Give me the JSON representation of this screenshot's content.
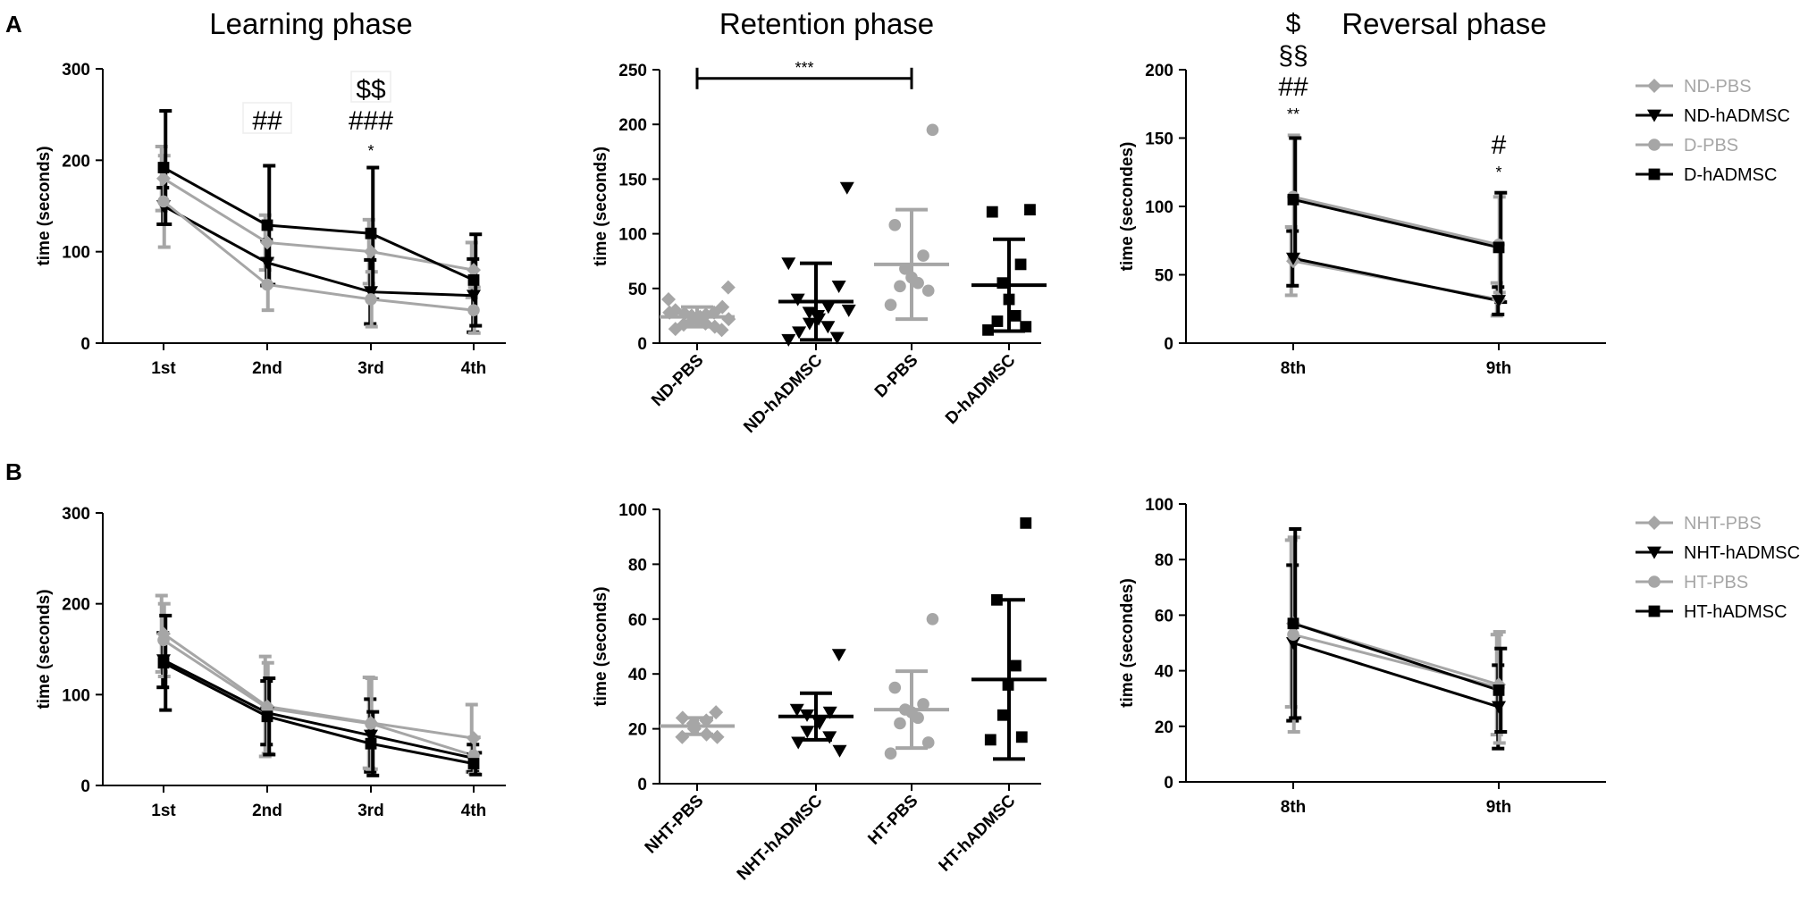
{
  "panel_labels": [
    "A",
    "B"
  ],
  "chart_data": [
    {
      "id": "A-learning",
      "type": "line",
      "title": "Learning phase",
      "xlabel": "",
      "ylabel": "time (seconds)",
      "ylim": [
        0,
        300
      ],
      "yticks": [
        0,
        100,
        200,
        300
      ],
      "categories": [
        "1st",
        "2nd",
        "3rd",
        "4th"
      ],
      "series": [
        {
          "name": "ND-PBS",
          "color": "#a6a6a6",
          "marker": "diamond",
          "values": [
            180,
            110,
            100,
            80
          ],
          "err": [
            35,
            30,
            35,
            30
          ]
        },
        {
          "name": "ND-hADMSC",
          "color": "#000000",
          "marker": "triangle-down",
          "values": [
            150,
            88,
            56,
            52
          ],
          "err": [
            20,
            25,
            35,
            40
          ]
        },
        {
          "name": "D-PBS",
          "color": "#a6a6a6",
          "marker": "circle",
          "values": [
            155,
            64,
            48,
            36
          ],
          "err": [
            50,
            28,
            30,
            25
          ]
        },
        {
          "name": "D-hADMSC",
          "color": "#000000",
          "marker": "square",
          "values": [
            192,
            129,
            120,
            69
          ],
          "err": [
            62,
            65,
            72,
            50
          ]
        }
      ],
      "annotations": [
        {
          "category": "2nd",
          "lines": [
            "##"
          ]
        },
        {
          "category": "3rd",
          "lines": [
            "$$",
            "###",
            "*"
          ]
        }
      ]
    },
    {
      "id": "A-retention",
      "type": "scatter",
      "title": "Retention phase",
      "xlabel": "",
      "ylabel": "time (seconds)",
      "ylim": [
        0,
        250
      ],
      "yticks": [
        0,
        50,
        100,
        150,
        200,
        250
      ],
      "categories": [
        "ND-PBS",
        "ND-hADMSC",
        "D-PBS",
        "D-hADMSC"
      ],
      "series": [
        {
          "name": "ND-PBS",
          "color": "#a6a6a6",
          "marker": "diamond",
          "mean": 24,
          "sd": 9,
          "points": [
            51,
            40,
            33,
            30,
            28,
            27,
            26,
            25,
            24,
            22,
            20,
            18,
            17,
            15,
            13,
            12,
            28,
            22
          ]
        },
        {
          "name": "ND-hADMSC",
          "color": "#000000",
          "marker": "triangle-down",
          "mean": 38,
          "sd": 35,
          "points": [
            142,
            73,
            52,
            40,
            33,
            28,
            25,
            22,
            18,
            15,
            10,
            5,
            3,
            30
          ]
        },
        {
          "name": "D-PBS",
          "color": "#a6a6a6",
          "marker": "circle",
          "mean": 72,
          "sd": 50,
          "points": [
            195,
            108,
            80,
            68,
            60,
            55,
            52,
            48,
            35
          ]
        },
        {
          "name": "D-hADMSC",
          "color": "#000000",
          "marker": "square",
          "mean": 53,
          "sd": 42,
          "points": [
            122,
            120,
            72,
            55,
            40,
            25,
            20,
            15,
            12
          ]
        }
      ],
      "bracket": {
        "from": "ND-PBS",
        "to": "D-PBS",
        "y": 242,
        "label": "***"
      }
    },
    {
      "id": "A-reversal",
      "type": "line",
      "title": "Reversal phase",
      "xlabel": "",
      "ylabel": "time (secondes)",
      "ylim": [
        0,
        200
      ],
      "yticks": [
        0,
        50,
        100,
        150,
        200
      ],
      "categories": [
        "8th",
        "9th"
      ],
      "series": [
        {
          "name": "ND-PBS",
          "color": "#a6a6a6",
          "marker": "diamond",
          "values": [
            60,
            32
          ],
          "err": [
            25,
            12
          ]
        },
        {
          "name": "ND-hADMSC",
          "color": "#000000",
          "marker": "triangle-down",
          "values": [
            62,
            31
          ],
          "err": [
            20,
            10
          ]
        },
        {
          "name": "D-PBS",
          "color": "#a6a6a6",
          "marker": "circle",
          "values": [
            107,
            72
          ],
          "err": [
            45,
            35
          ]
        },
        {
          "name": "D-hADMSC",
          "color": "#000000",
          "marker": "square",
          "values": [
            105,
            70
          ],
          "err": [
            45,
            40
          ]
        }
      ],
      "annotations": [
        {
          "category": "8th",
          "lines": [
            "$",
            "§§",
            "##",
            "**"
          ]
        },
        {
          "category": "9th",
          "lines": [
            "#",
            "*"
          ]
        }
      ]
    },
    {
      "id": "B-learning",
      "type": "line",
      "title": "",
      "xlabel": "",
      "ylabel": "time (seconds)",
      "ylim": [
        0,
        300
      ],
      "yticks": [
        0,
        100,
        200,
        300
      ],
      "categories": [
        "1st",
        "2nd",
        "3rd",
        "4th"
      ],
      "series": [
        {
          "name": "NHT-PBS",
          "color": "#a6a6a6",
          "marker": "diamond",
          "values": [
            167,
            87,
            69,
            52
          ],
          "err": [
            42,
            55,
            50,
            37
          ]
        },
        {
          "name": "NHT-hADMSC",
          "color": "#000000",
          "marker": "triangle-down",
          "values": [
            138,
            80,
            55,
            30
          ],
          "err": [
            30,
            35,
            40,
            15
          ]
        },
        {
          "name": "HT-PBS",
          "color": "#a6a6a6",
          "marker": "circle",
          "values": [
            160,
            85,
            68,
            33
          ],
          "err": [
            40,
            50,
            50,
            20
          ]
        },
        {
          "name": "HT-hADMSC",
          "color": "#000000",
          "marker": "square",
          "values": [
            135,
            76,
            46,
            24
          ],
          "err": [
            52,
            42,
            35,
            12
          ]
        }
      ],
      "annotations": []
    },
    {
      "id": "B-retention",
      "type": "scatter",
      "title": "",
      "xlabel": "",
      "ylabel": "time (seconds)",
      "ylim": [
        0,
        100
      ],
      "yticks": [
        0,
        20,
        40,
        60,
        80,
        100
      ],
      "categories": [
        "NHT-PBS",
        "NHT-hADMSC",
        "HT-PBS",
        "HT-hADMSC"
      ],
      "series": [
        {
          "name": "NHT-PBS",
          "color": "#a6a6a6",
          "marker": "diamond",
          "mean": 21,
          "sd": 3,
          "points": [
            26,
            24,
            23,
            22,
            20,
            18,
            17,
            17
          ]
        },
        {
          "name": "NHT-hADMSC",
          "color": "#000000",
          "marker": "triangle-down",
          "mean": 24.5,
          "sd": 8.5,
          "points": [
            47,
            27,
            26,
            25,
            23,
            22,
            19,
            17,
            15,
            12
          ]
        },
        {
          "name": "HT-PBS",
          "color": "#a6a6a6",
          "marker": "circle",
          "mean": 27,
          "sd": 14,
          "points": [
            60,
            35,
            29,
            27,
            26,
            24,
            22,
            15,
            11
          ]
        },
        {
          "name": "HT-hADMSC",
          "color": "#000000",
          "marker": "square",
          "mean": 38,
          "sd": 29,
          "points": [
            95,
            67,
            43,
            36,
            25,
            17,
            16
          ]
        }
      ]
    },
    {
      "id": "B-reversal",
      "type": "line",
      "title": "",
      "xlabel": "",
      "ylabel": "time (secondes)",
      "ylim": [
        0,
        100
      ],
      "yticks": [
        0,
        20,
        40,
        60,
        80,
        100
      ],
      "categories": [
        "8th",
        "9th"
      ],
      "series": [
        {
          "name": "NHT-PBS",
          "color": "#a6a6a6",
          "marker": "diamond",
          "values": [
            57,
            35
          ],
          "err": [
            30,
            18
          ]
        },
        {
          "name": "NHT-hADMSC",
          "color": "#000000",
          "marker": "triangle-down",
          "values": [
            50,
            27
          ],
          "err": [
            28,
            15
          ]
        },
        {
          "name": "HT-PBS",
          "color": "#a6a6a6",
          "marker": "circle",
          "values": [
            53,
            34
          ],
          "err": [
            35,
            20
          ]
        },
        {
          "name": "HT-hADMSC",
          "color": "#000000",
          "marker": "square",
          "values": [
            57,
            33
          ],
          "err": [
            34,
            15
          ]
        }
      ],
      "annotations": []
    }
  ],
  "legends": [
    {
      "id": "A",
      "entries": [
        {
          "name": "ND-PBS",
          "color": "#a6a6a6",
          "marker": "diamond"
        },
        {
          "name": "ND-hADMSC",
          "color": "#000000",
          "marker": "triangle-down"
        },
        {
          "name": "D-PBS",
          "color": "#a6a6a6",
          "marker": "circle"
        },
        {
          "name": "D-hADMSC",
          "color": "#000000",
          "marker": "square"
        }
      ]
    },
    {
      "id": "B",
      "entries": [
        {
          "name": "NHT-PBS",
          "color": "#a6a6a6",
          "marker": "diamond"
        },
        {
          "name": "NHT-hADMSC",
          "color": "#000000",
          "marker": "triangle-down"
        },
        {
          "name": "HT-PBS",
          "color": "#a6a6a6",
          "marker": "circle"
        },
        {
          "name": "HT-hADMSC",
          "color": "#000000",
          "marker": "square"
        }
      ]
    }
  ]
}
